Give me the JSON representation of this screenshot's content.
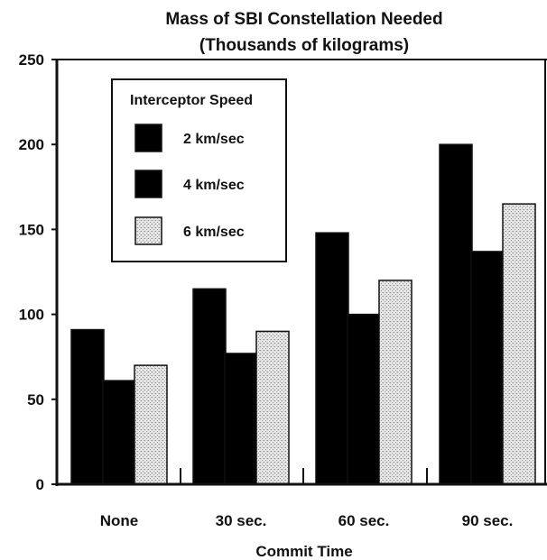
{
  "chart_data": {
    "type": "bar",
    "title": "Mass of SBI Constellation Needed",
    "subtitle": "(Thousands of kilograms)",
    "xlabel": "Commit Time",
    "ylabel": "",
    "categories": [
      "None",
      "30 sec.",
      "60 sec.",
      "90 sec."
    ],
    "series": [
      {
        "name": "2 km/sec",
        "values": [
          91,
          115,
          148,
          200
        ],
        "color": "#000000",
        "pattern": "solid"
      },
      {
        "name": "4 km/sec",
        "values": [
          61,
          77,
          100,
          137
        ],
        "color": "#000000",
        "pattern": "solid"
      },
      {
        "name": "6 km/sec",
        "values": [
          70,
          90,
          120,
          165
        ],
        "color": "#d9d9d9",
        "pattern": "stipple"
      }
    ],
    "ylim": [
      0,
      250
    ],
    "yticks": [
      0,
      50,
      100,
      150,
      200,
      250
    ],
    "legend": {
      "title": "Interceptor Speed",
      "placement": "top-left"
    },
    "grid": false
  }
}
